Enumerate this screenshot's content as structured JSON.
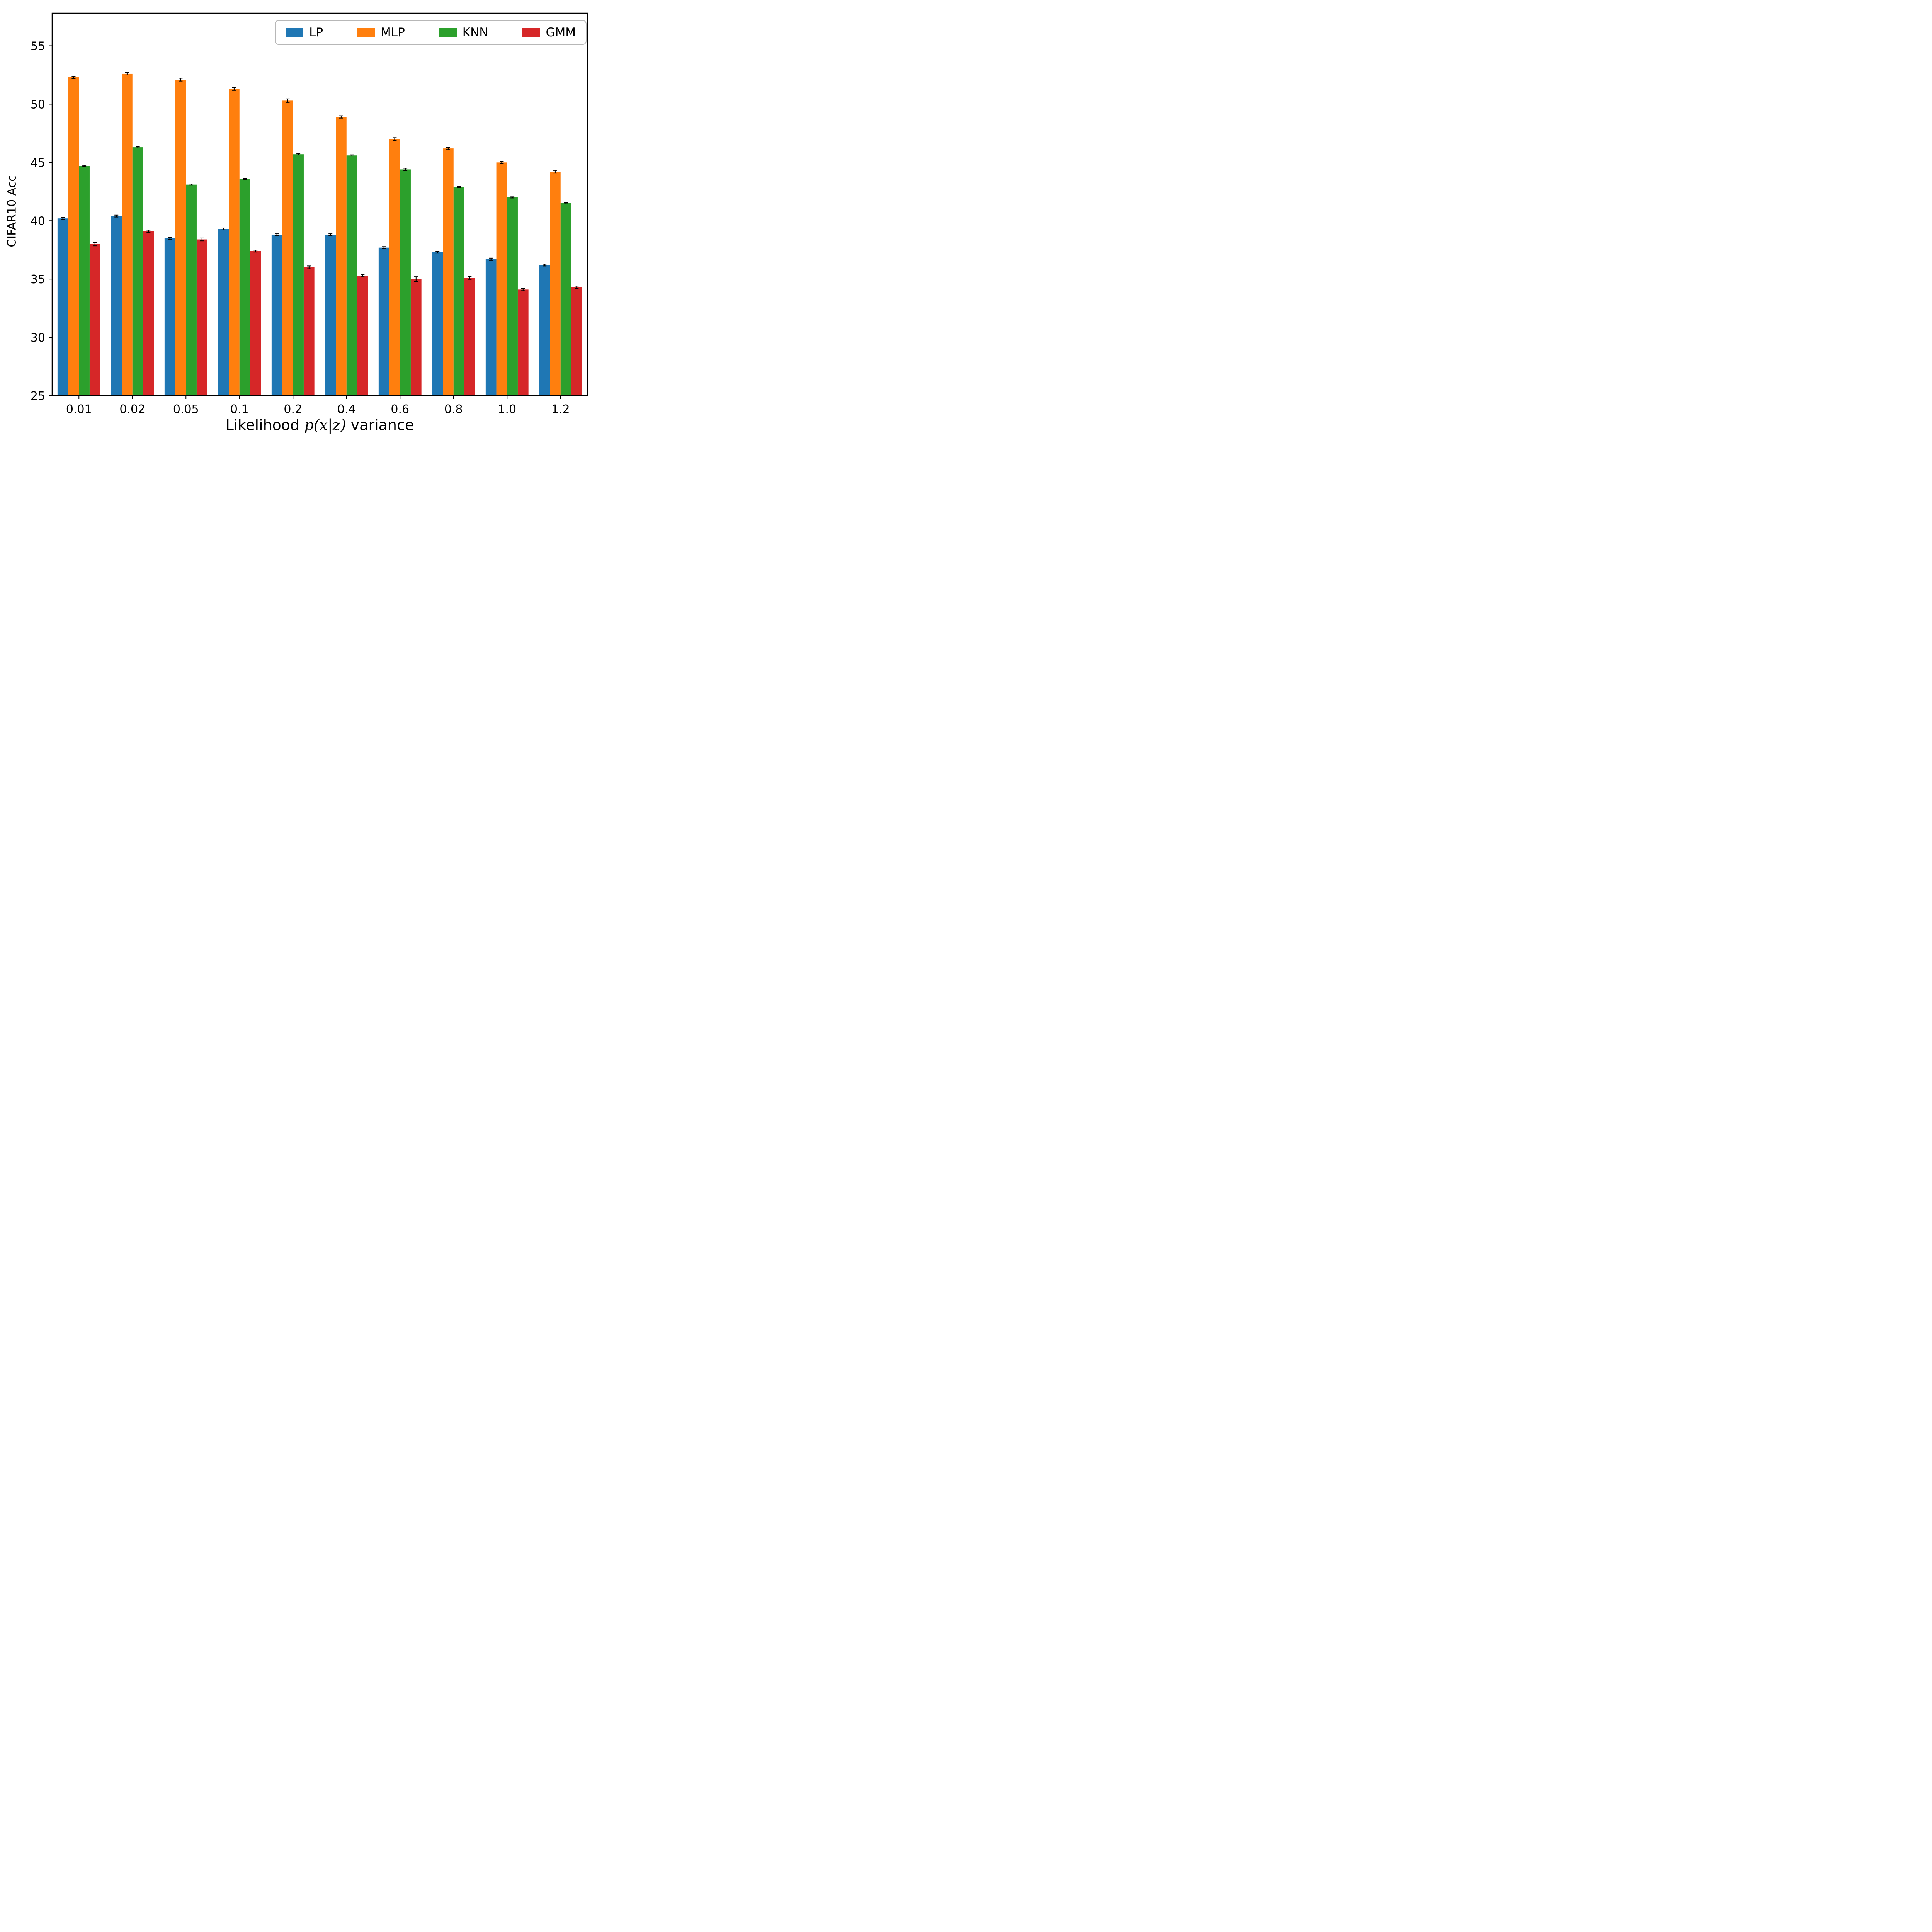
{
  "chart_data": {
    "type": "bar",
    "title": "",
    "ylabel": "CIFAR10 Acc",
    "xlabel_parts": [
      "Likelihood ",
      "p(x|z)",
      " variance"
    ],
    "categories": [
      "0.01",
      "0.02",
      "0.05",
      "0.1",
      "0.2",
      "0.4",
      "0.6",
      "0.8",
      "1.0",
      "1.2"
    ],
    "ylim": [
      25,
      57.8
    ],
    "yticks": [
      25,
      30,
      35,
      40,
      45,
      50,
      55
    ],
    "grid": false,
    "legend_position": "upper right inside axes, horizontal",
    "series": [
      {
        "name": "LP",
        "color": "#1f77b4",
        "values": [
          40.2,
          40.4,
          38.5,
          39.3,
          38.8,
          38.8,
          37.7,
          37.3,
          36.7,
          36.2
        ],
        "errors": [
          0.1,
          0.08,
          0.08,
          0.08,
          0.08,
          0.08,
          0.08,
          0.08,
          0.1,
          0.08
        ]
      },
      {
        "name": "MLP",
        "color": "#ff7f0e",
        "values": [
          52.3,
          52.6,
          52.1,
          51.3,
          50.3,
          48.9,
          47.0,
          46.2,
          45.0,
          44.2
        ],
        "errors": [
          0.1,
          0.1,
          0.12,
          0.12,
          0.15,
          0.1,
          0.12,
          0.1,
          0.1,
          0.12
        ]
      },
      {
        "name": "KNN",
        "color": "#2ca02c",
        "values": [
          44.7,
          46.3,
          43.1,
          43.6,
          45.7,
          45.6,
          44.4,
          42.9,
          42.0,
          41.5
        ],
        "errors": [
          0.05,
          0.05,
          0.05,
          0.05,
          0.05,
          0.05,
          0.1,
          0.05,
          0.05,
          0.05
        ]
      },
      {
        "name": "GMM",
        "color": "#d62728",
        "values": [
          38.0,
          39.1,
          38.4,
          37.4,
          36.0,
          35.3,
          35.0,
          35.1,
          34.1,
          34.3
        ],
        "errors": [
          0.15,
          0.1,
          0.12,
          0.08,
          0.12,
          0.1,
          0.2,
          0.12,
          0.1,
          0.1
        ]
      }
    ]
  }
}
